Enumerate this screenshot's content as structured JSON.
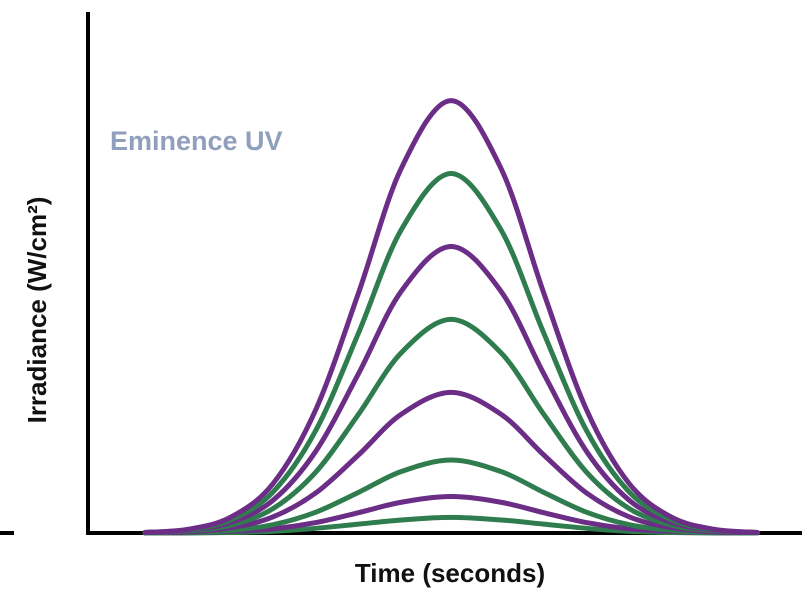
{
  "chart_data": {
    "type": "line",
    "annotation": "Eminence UV",
    "xlabel": "Time (seconds)",
    "ylabel": "Irradiance (W/cm²)",
    "x": [
      8,
      14,
      20,
      26,
      32,
      38,
      44,
      51,
      58,
      64,
      70,
      76,
      82,
      88,
      94
    ],
    "xlim": [
      0,
      100
    ],
    "ylim": [
      0,
      100
    ],
    "series": [
      {
        "color": "#6b2d86",
        "values": [
          0.1,
          0.7,
          3.0,
          9.5,
          23.7,
          46.1,
          70.0,
          83,
          70.0,
          46.1,
          23.7,
          9.5,
          3.0,
          0.7,
          0.1
        ]
      },
      {
        "color": "#2f7d4e",
        "values": [
          0.1,
          0.6,
          2.5,
          7.9,
          19.7,
          38.4,
          58.2,
          69,
          58.2,
          38.4,
          19.7,
          7.9,
          2.5,
          0.6,
          0.1
        ]
      },
      {
        "color": "#6b2d86",
        "values": [
          0.1,
          0.5,
          2.0,
          6.3,
          15.7,
          30.6,
          46.4,
          55,
          46.4,
          30.6,
          15.7,
          6.3,
          2.0,
          0.5,
          0.1
        ]
      },
      {
        "color": "#2f7d4e",
        "values": [
          0.1,
          0.4,
          1.5,
          4.7,
          11.7,
          22.8,
          34.6,
          41,
          34.6,
          22.8,
          11.7,
          4.7,
          1.5,
          0.4,
          0.1
        ]
      },
      {
        "color": "#6b2d86",
        "values": [
          0.1,
          0.2,
          1.0,
          3.1,
          7.7,
          15.0,
          22.8,
          27,
          22.8,
          15.0,
          7.7,
          3.1,
          1.0,
          0.2,
          0.1
        ]
      },
      {
        "color": "#2f7d4e",
        "values": [
          0.0,
          0.1,
          0.5,
          1.6,
          4.0,
          7.8,
          11.8,
          14,
          11.8,
          7.8,
          4.0,
          1.6,
          0.5,
          0.1,
          0.0
        ]
      },
      {
        "color": "#6b2d86",
        "values": [
          0.0,
          0.1,
          0.3,
          0.8,
          2.0,
          3.9,
          5.9,
          7,
          5.9,
          3.9,
          2.0,
          0.8,
          0.3,
          0.1,
          0.0
        ]
      },
      {
        "color": "#2f7d4e",
        "values": [
          0.0,
          0.0,
          0.1,
          0.3,
          0.9,
          1.7,
          2.5,
          3,
          2.5,
          1.7,
          0.9,
          0.3,
          0.1,
          0.0,
          0.0
        ]
      }
    ]
  }
}
